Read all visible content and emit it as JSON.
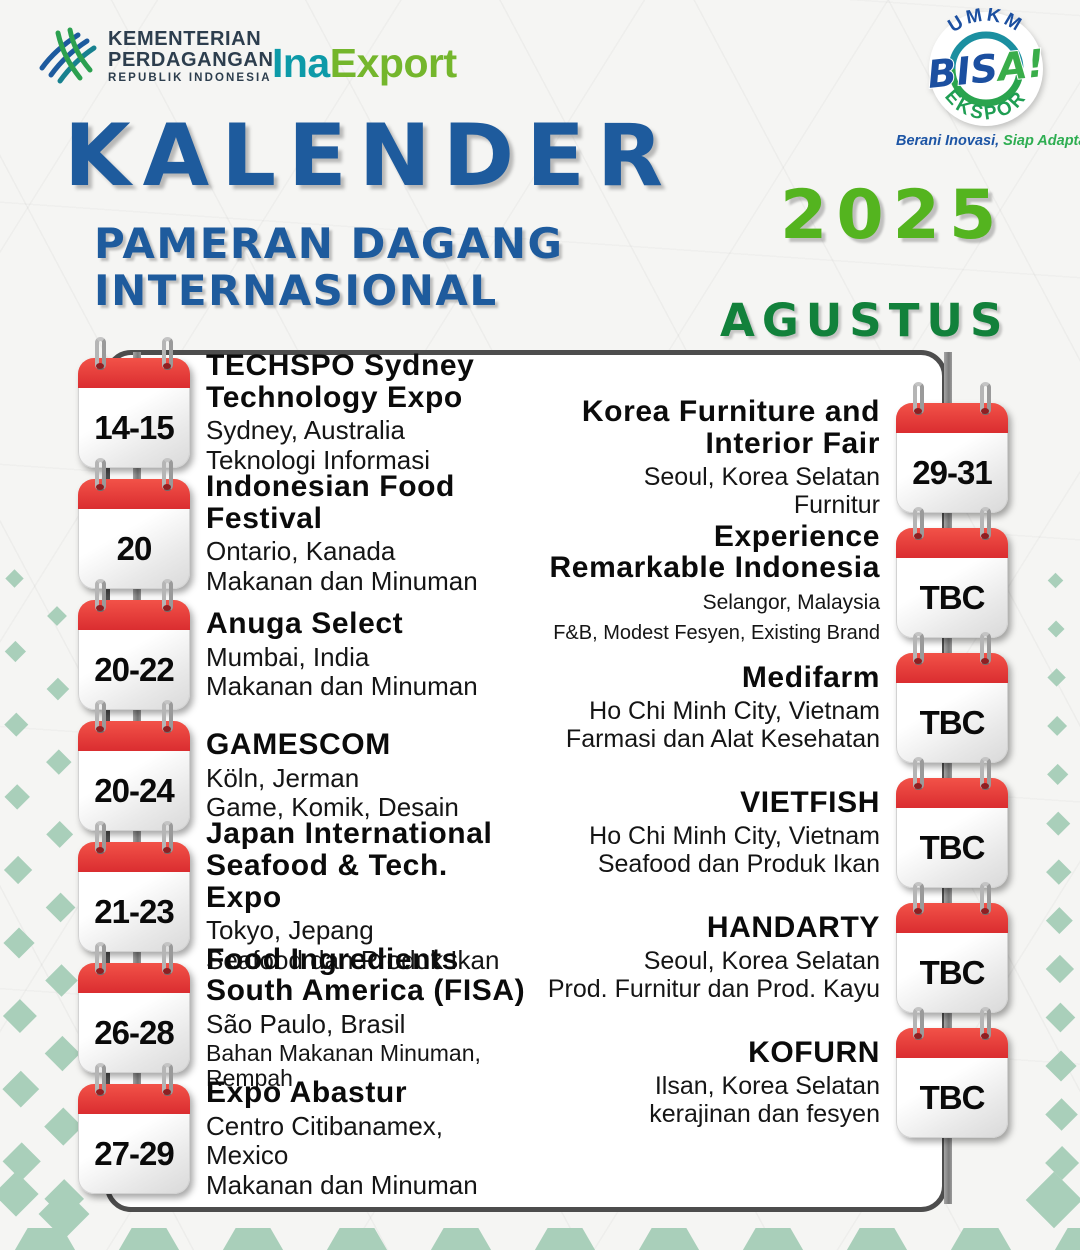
{
  "header": {
    "ministry": {
      "line1": "KEMENTERIAN",
      "line2": "PERDAGANGAN",
      "line3": "REPUBLIK INDONESIA"
    },
    "inaexport": {
      "ina": "Ina",
      "rest": "Export"
    },
    "badge": {
      "top": "UMKM",
      "middle_a": "BIS",
      "middle_b": "A!",
      "bottom": "EKSPOR",
      "tagline_blue": "Berani Inovasi,",
      "tagline_green": " Siap Adaptasi!"
    }
  },
  "title": {
    "main": "KALENDER",
    "sub_line1": "PAMERAN DAGANG",
    "sub_line2": "INTERNASIONAL",
    "year": "2025",
    "month": "AGUSTUS"
  },
  "events_left": [
    {
      "date": "14-15",
      "title": "TECHSPO Sydney Technology Expo",
      "location": "Sydney, Australia",
      "category": "Teknologi Informasi"
    },
    {
      "date": "20",
      "title": "Indonesian Food Festival",
      "location": "Ontario, Kanada",
      "category": "Makanan dan Minuman"
    },
    {
      "date": "20-22",
      "title": "Anuga Select",
      "location": "Mumbai, India",
      "category": "Makanan dan Minuman"
    },
    {
      "date": "20-24",
      "title": "GAMESCOM",
      "location": "Köln, Jerman",
      "category": "Game, Komik, Desain"
    },
    {
      "date": "21-23",
      "title": "Japan International Seafood & Tech. Expo",
      "location": "Tokyo, Jepang",
      "category": "Seafood dan Produk Ikan"
    },
    {
      "date": "26-28",
      "title": "Food Ingredients South America (FISA)",
      "location": "São Paulo, Brasil",
      "category": "Bahan Makanan Minuman, Rempah"
    },
    {
      "date": "27-29",
      "title": "Expo Abastur",
      "location": "Centro Citibanamex, Mexico",
      "category": "Makanan dan Minuman"
    }
  ],
  "events_right": [
    {
      "date": "29-31",
      "title": "Korea Furniture and Interior Fair",
      "location": "Seoul, Korea Selatan",
      "category": "Furnitur"
    },
    {
      "date": "TBC",
      "title": "Experience Remarkable Indonesia",
      "location": "Selangor, Malaysia",
      "category": "F&B, Modest Fesyen, Existing Brand"
    },
    {
      "date": "TBC",
      "title": "Medifarm",
      "location": "Ho Chi Minh City, Vietnam",
      "category": "Farmasi dan Alat Kesehatan"
    },
    {
      "date": "TBC",
      "title": "VIETFISH",
      "location": "Ho Chi Minh City, Vietnam",
      "category": "Seafood dan Produk Ikan"
    },
    {
      "date": "TBC",
      "title": "HANDARTY",
      "location": "Seoul, Korea Selatan",
      "category": "Prod. Furnitur dan Prod. Kayu"
    },
    {
      "date": "TBC",
      "title": "KOFURN",
      "location": "Ilsan, Korea Selatan",
      "category": "kerajinan dan fesyen"
    }
  ],
  "colors": {
    "title_blue": "#1e5b9d",
    "year_green": "#54b41f",
    "month_green": "#12813b",
    "calendar_red": "#e6393c",
    "diamond_green": "#a9cfba",
    "panel_border": "#4d4d4d",
    "inaexport_teal": "#0d9aa8",
    "inaexport_green": "#74b62c"
  }
}
